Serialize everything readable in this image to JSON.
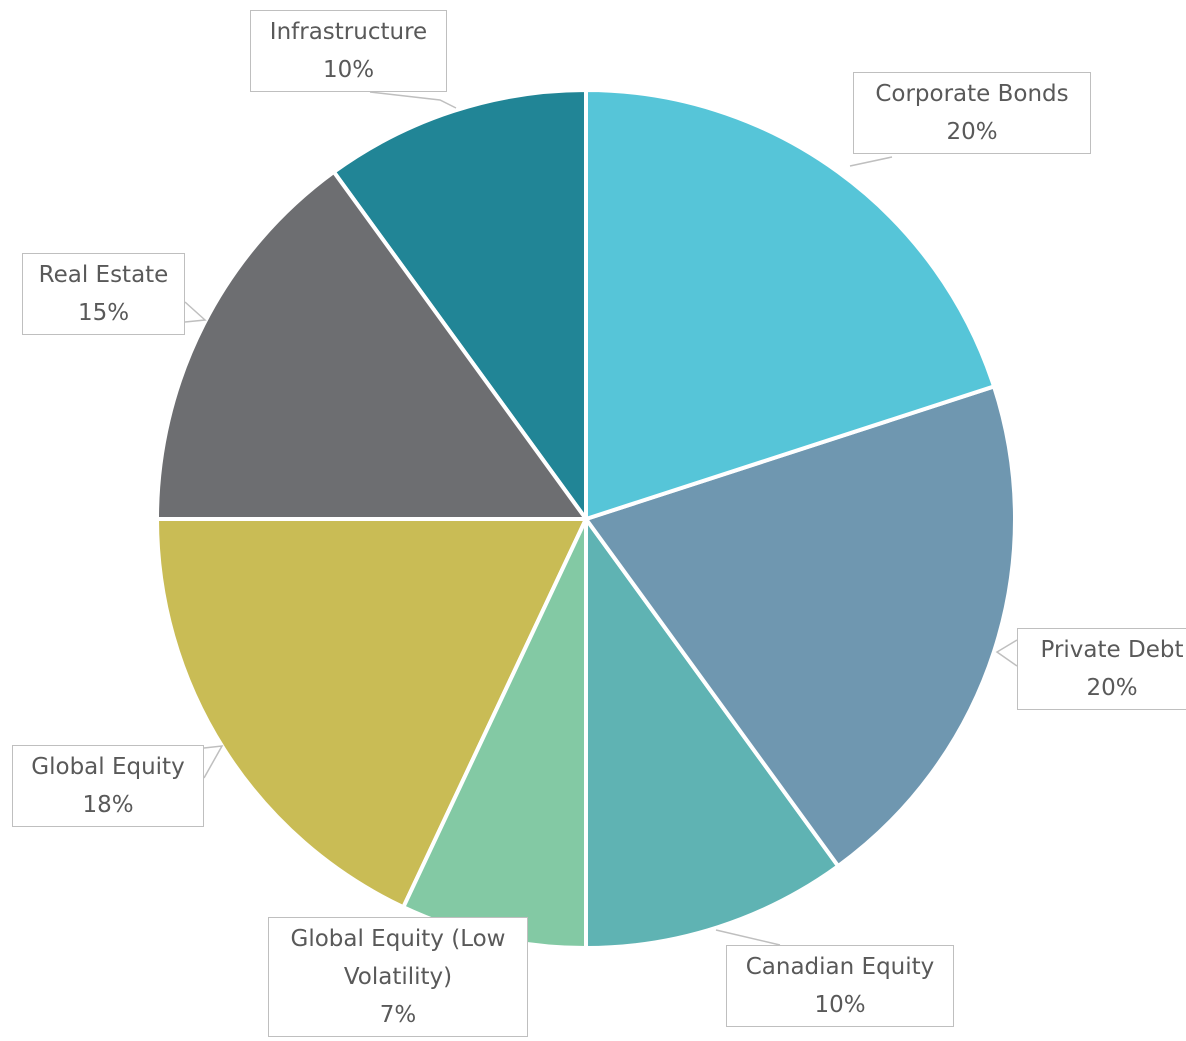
{
  "chart_data": {
    "type": "pie",
    "categories": [
      "Corporate Bonds",
      "Private Debt",
      "Canadian Equity",
      "Global Equity (Low Volatility)",
      "Global Equity",
      "Real Estate",
      "Infrastructure"
    ],
    "values": [
      20,
      20,
      10,
      7,
      18,
      15,
      10
    ],
    "value_labels": [
      "20%",
      "20%",
      "10%",
      "7%",
      "18%",
      "15%",
      "10%"
    ],
    "colors": [
      "#56c5d8",
      "#6f97b0",
      "#5fb3b3",
      "#83c9a4",
      "#c9bc55",
      "#6d6e71",
      "#218596"
    ]
  }
}
